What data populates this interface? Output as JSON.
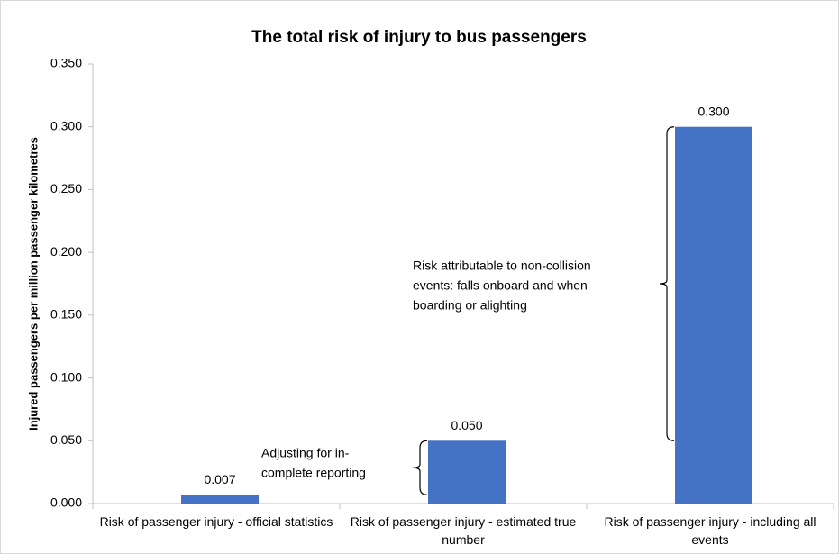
{
  "chart_data": {
    "type": "bar",
    "title": "The total risk of injury to bus passengers",
    "y_label": "Injured passengers per million passenger kilometres",
    "categories": [
      "Risk of passenger injury  - official statistics",
      "Risk of passenger injury  - estimated true number",
      "Risk of passenger injury - including all events"
    ],
    "values": [
      0.007,
      0.05,
      0.3
    ],
    "value_labels": [
      "0.007",
      "0.050",
      "0.300"
    ],
    "color": "#4472c4",
    "ylim": [
      0,
      0.35
    ],
    "yticks": [
      {
        "value": 0,
        "label": "0.000"
      },
      {
        "value": 0.05,
        "label": "0.050"
      },
      {
        "value": 0.1,
        "label": "0.100"
      },
      {
        "value": 0.15,
        "label": "0.150"
      },
      {
        "value": 0.2,
        "label": "0.200"
      },
      {
        "value": 0.25,
        "label": "0.250"
      },
      {
        "value": 0.3,
        "label": "0.300"
      },
      {
        "value": 0.35,
        "label": "0.350"
      }
    ],
    "annotations": [
      {
        "lines": [
          "Adjusting for in-",
          "complete reporting"
        ]
      },
      {
        "lines": [
          "Risk attributable to non-collision",
          "events: falls onboard and when",
          "boarding or alighting"
        ]
      }
    ]
  }
}
